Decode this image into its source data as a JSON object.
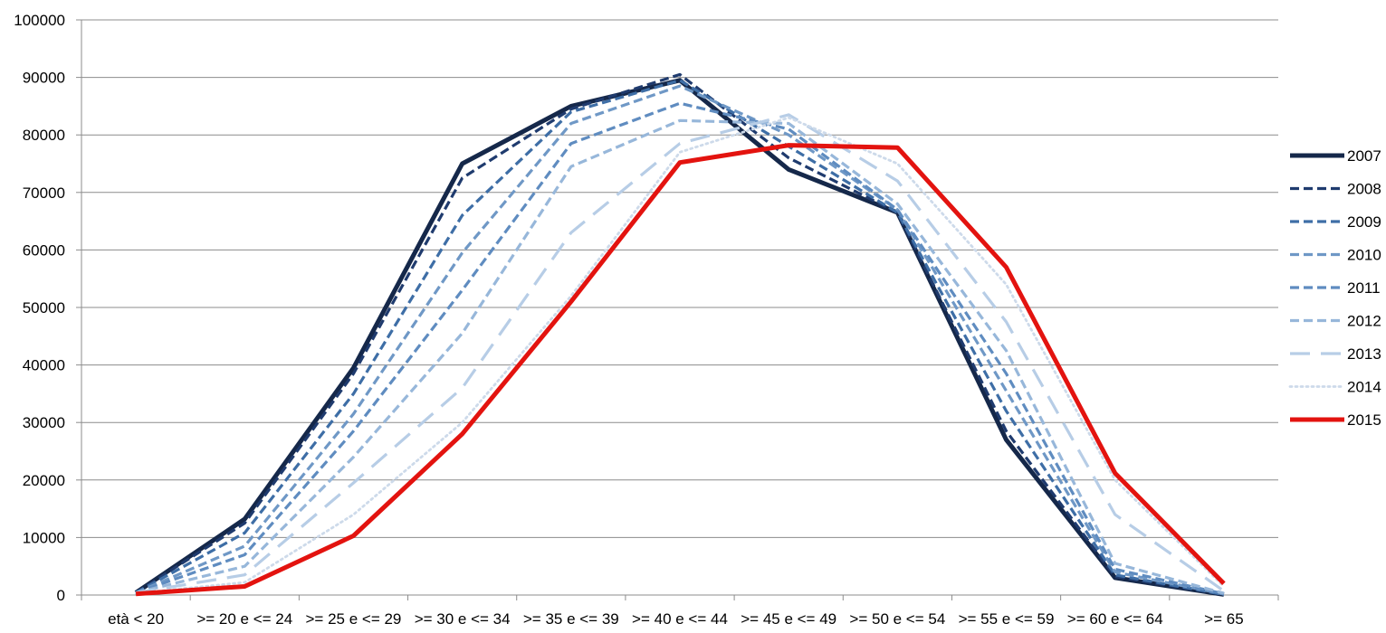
{
  "chart_data": {
    "type": "line",
    "title": "",
    "xlabel": "",
    "ylabel": "",
    "ylim": [
      0,
      100000
    ],
    "yticks": [
      0,
      10000,
      20000,
      30000,
      40000,
      50000,
      60000,
      70000,
      80000,
      90000,
      100000
    ],
    "grid": "horizontal",
    "legend_position": "right",
    "categories": [
      "età < 20",
      ">= 20 e <= 24",
      ">= 25 e <= 29",
      ">= 30 e <= 34",
      ">= 35 e <= 39",
      ">= 40 e <= 44",
      ">= 45 e <= 49",
      ">= 50 e <= 54",
      ">= 55 e <= 59",
      ">= 60 e <= 64",
      ">= 65"
    ],
    "series": [
      {
        "name": "2007",
        "color": "#15284a",
        "style": "solid",
        "values": [
          400,
          13200,
          39500,
          75000,
          85000,
          89500,
          74000,
          66500,
          27000,
          3000,
          100
        ]
      },
      {
        "name": "2008",
        "color": "#1f3b6e",
        "style": "dash",
        "values": [
          400,
          12500,
          38500,
          72500,
          84500,
          90500,
          76000,
          66500,
          28500,
          3200,
          100
        ]
      },
      {
        "name": "2009",
        "color": "#3e6ea6",
        "style": "dash",
        "values": [
          400,
          10800,
          35000,
          66000,
          84000,
          89500,
          78000,
          66500,
          32000,
          3500,
          100
        ]
      },
      {
        "name": "2010",
        "color": "#6f98c6",
        "style": "dash",
        "values": [
          400,
          8500,
          31500,
          59500,
          82000,
          88500,
          80000,
          67000,
          35500,
          4000,
          150
        ]
      },
      {
        "name": "2011",
        "color": "#5f8cc0",
        "style": "dash",
        "values": [
          400,
          7000,
          28500,
          53000,
          78500,
          85500,
          81000,
          67000,
          38500,
          4500,
          200
        ]
      },
      {
        "name": "2012",
        "color": "#97b7da",
        "style": "dash",
        "values": [
          400,
          5000,
          24000,
          45500,
          74500,
          82500,
          82000,
          68000,
          42500,
          5500,
          300
        ]
      },
      {
        "name": "2013",
        "color": "#b7cde6",
        "style": "longdash",
        "values": [
          400,
          3500,
          19500,
          36000,
          63000,
          78500,
          83500,
          72000,
          47500,
          14000,
          700
        ]
      },
      {
        "name": "2014",
        "color": "#cddaea",
        "style": "dot",
        "values": [
          300,
          2200,
          14000,
          30000,
          52000,
          77000,
          83000,
          75000,
          54000,
          20000,
          1500
        ]
      },
      {
        "name": "2015",
        "color": "#e3130f",
        "style": "solid",
        "values": [
          200,
          1500,
          10300,
          28000,
          51000,
          75200,
          78200,
          77800,
          57000,
          21200,
          2000
        ]
      }
    ]
  }
}
